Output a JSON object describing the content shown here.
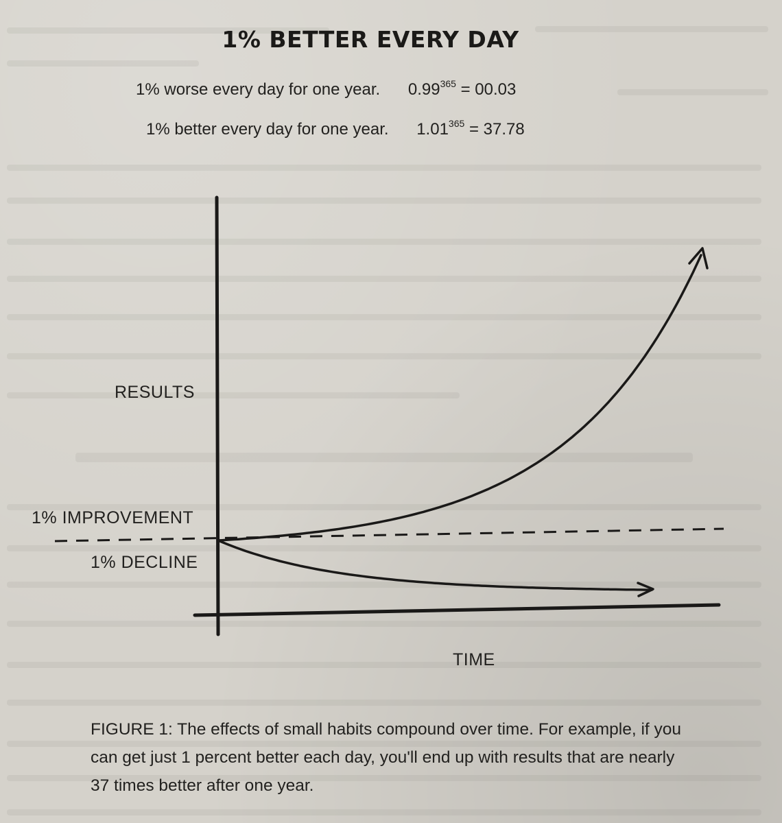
{
  "title": "1% BETTER EVERY DAY",
  "formulas": [
    {
      "text": "1% worse every day for one year.",
      "base": "0.99",
      "exponent": "365",
      "result": "= 00.03"
    },
    {
      "text": "1% better every day for one year.",
      "base": "1.01",
      "exponent": "365",
      "result": "= 37.78"
    }
  ],
  "chart_data": {
    "type": "line",
    "ylabel": "RESULTS",
    "xlabel": "TIME",
    "baseline_label": "1% IMPROVEMENT",
    "decline_label": "1% DECLINE",
    "grid": false,
    "legend": "none",
    "series": [
      {
        "name": "1% IMPROVEMENT",
        "growth_per_step": 1.01,
        "end_value": 37.78
      },
      {
        "name": "1% DECLINE",
        "growth_per_step": 0.99,
        "end_value": 0.03
      }
    ],
    "reference_line": {
      "style": "dashed",
      "value": 1
    }
  },
  "caption": "FIGURE 1: The effects of small habits compound over time. For example, if you can get just 1 percent better each day, you'll end up with results that are nearly 37 times better after one year."
}
